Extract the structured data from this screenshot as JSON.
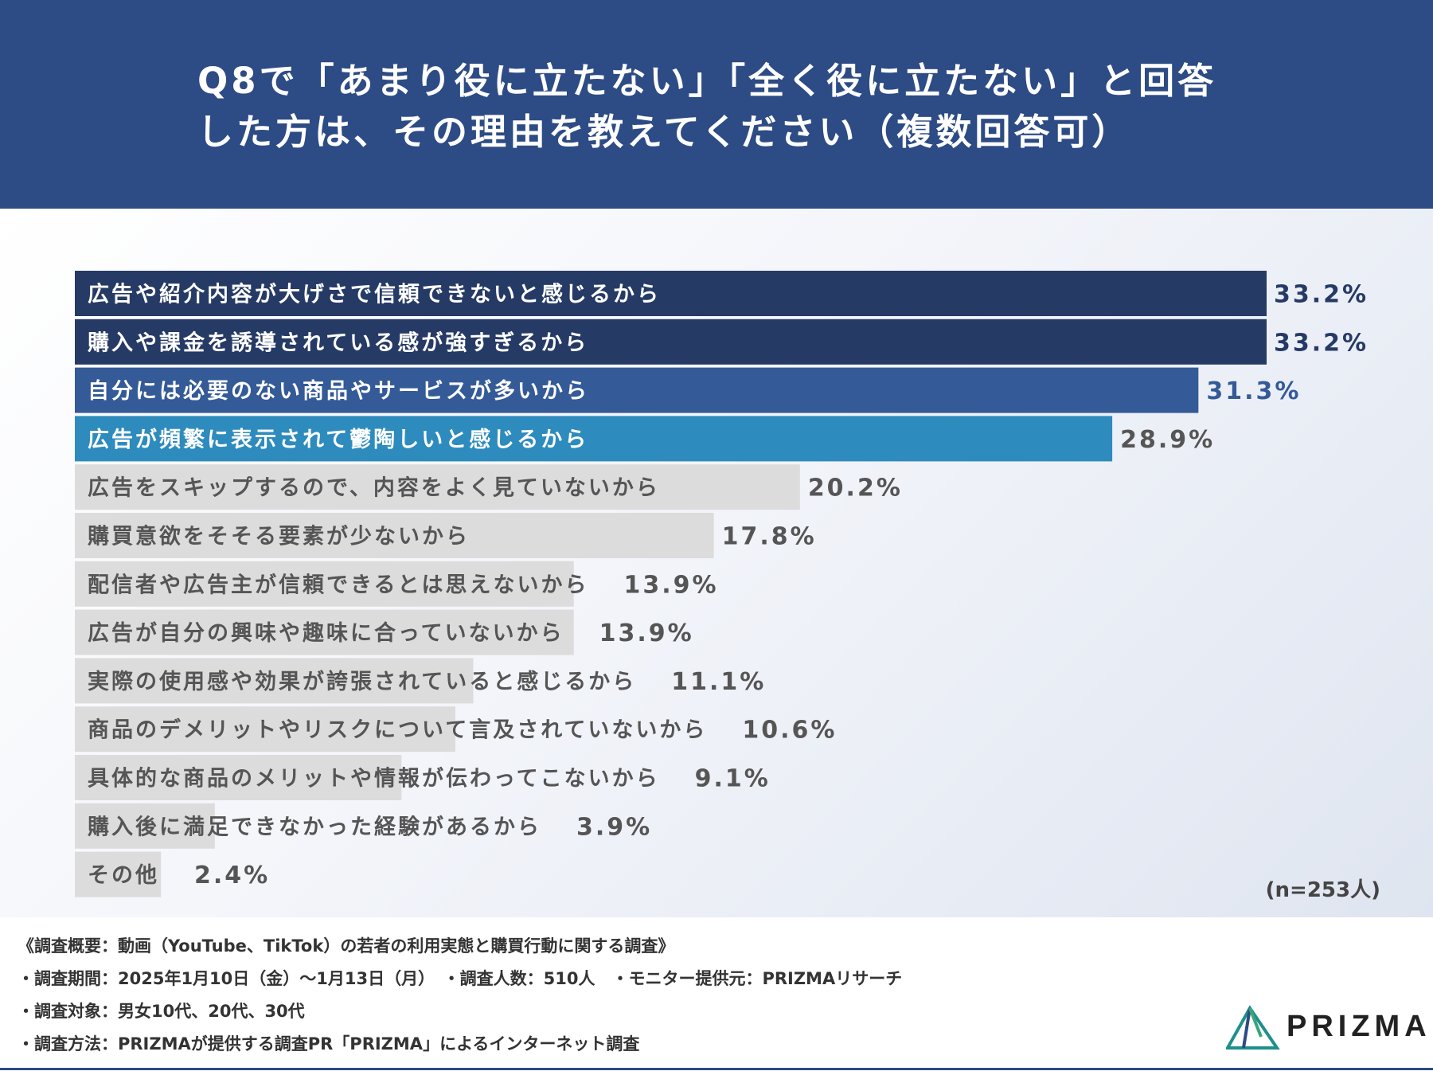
{
  "header": {
    "title_line1": "Q8で「あまり役に立たない」「全く役に立たない」と回答",
    "title_line2": "した方は、その理由を教えてください（複数回答可）"
  },
  "chart_data": {
    "type": "bar",
    "orientation": "horizontal",
    "categories": [
      "広告や紹介内容が大げさで信頼できないと感じるから",
      "購入や課金を誘導されている感が強すぎるから",
      "自分には必要のない商品やサービスが多いから",
      "広告が頻繁に表示されて鬱陶しいと感じるから",
      "広告をスキップするので、内容をよく見ていないから",
      "購買意欲をそそる要素が少ないから",
      "配信者や広告主が信頼できるとは思えないから",
      "広告が自分の興味や趣味に合っていないから",
      "実際の使用感や効果が誇張されていると感じるから",
      "商品のデメリットやリスクについて言及されていないから",
      "具体的な商品のメリットや情報が伝わってこないから",
      "購入後に満足できなかった経験があるから",
      "その他"
    ],
    "values": [
      33.2,
      33.2,
      31.3,
      28.9,
      20.2,
      17.8,
      13.9,
      13.9,
      11.1,
      10.6,
      9.1,
      3.9,
      2.4
    ],
    "value_labels": [
      "33.2%",
      "33.2%",
      "31.3%",
      "28.9%",
      "20.2%",
      "17.8%",
      "13.9%",
      "13.9%",
      "11.1%",
      "10.6%",
      "9.1%",
      "3.9%",
      "2.4%"
    ],
    "bar_colors": [
      "#263a66",
      "#263a66",
      "#345a97",
      "#2e8bbd",
      "#dcdcdc",
      "#dcdcdc",
      "#dcdcdc",
      "#dcdcdc",
      "#dcdcdc",
      "#dcdcdc",
      "#dcdcdc",
      "#dcdcdc",
      "#dcdcdc"
    ],
    "label_colors": [
      "#ffffff",
      "#ffffff",
      "#ffffff",
      "#ffffff",
      "#555555",
      "#555555",
      "#555555",
      "#555555",
      "#555555",
      "#555555",
      "#555555",
      "#555555",
      "#555555"
    ],
    "value_colors": [
      "#263a66",
      "#263a66",
      "#345a97",
      "#555555",
      "#555555",
      "#555555",
      "#555555",
      "#555555",
      "#555555",
      "#555555",
      "#555555",
      "#555555",
      "#555555"
    ],
    "xlim": [
      0,
      33.2
    ],
    "sample_note": "(n=253人)"
  },
  "footer": {
    "line1": "《調査概要：動画（YouTube、TikTok）の若者の利用実態と購買行動に関する調査》",
    "line2": "・調査期間：2025年1月10日（金）〜1月13日（月）　・調査人数：510人　・モニター提供元：PRIZMAリサーチ",
    "line3": "・調査対象：男女10代、20代、30代",
    "line4": "・調査方法：PRIZMAが提供する調査PR「PRIZMA」によるインターネット調査",
    "logo_text": "PRIZMA"
  },
  "colors": {
    "header_bg": "#2d4b84"
  }
}
